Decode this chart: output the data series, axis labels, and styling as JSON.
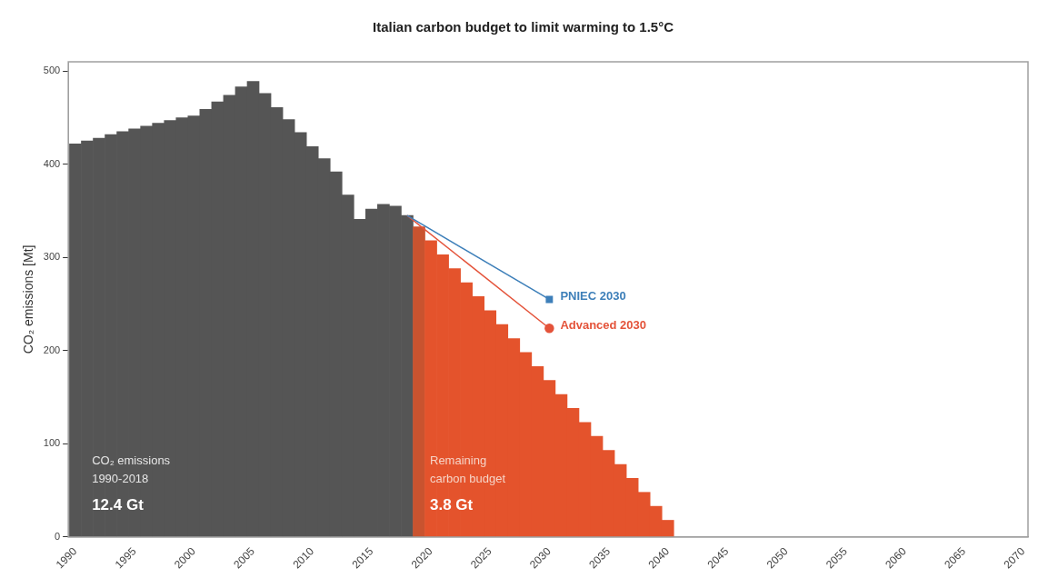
{
  "chart_data": {
    "type": "bar",
    "title": "Italian carbon budget to limit warming to 1.5°C",
    "ylabel": "CO₂ emissions [Mt]",
    "xlim": [
      1989.4,
      2070.4
    ],
    "xticks": [
      1990,
      1995,
      2000,
      2005,
      2010,
      2015,
      2020,
      2025,
      2030,
      2035,
      2040,
      2045,
      2050,
      2055,
      2060,
      2065,
      2070
    ],
    "ylim": [
      0,
      510
    ],
    "yticks": [
      0,
      100,
      200,
      300,
      400,
      500
    ],
    "grid": false,
    "legend": false,
    "series": [
      {
        "x": [
          1990,
          1991,
          1992,
          1993,
          1994,
          1995,
          1996,
          1997,
          1998,
          1999,
          2000,
          2001,
          2002,
          2003,
          2004,
          2005,
          2006,
          2007,
          2008,
          2009,
          2010,
          2011,
          2012,
          2013,
          2014,
          2015,
          2016,
          2017,
          2018,
          2019,
          2020,
          2021,
          2022,
          2023,
          2024,
          2025,
          2026,
          2027,
          2028,
          2029,
          2030,
          2031,
          2032,
          2033,
          2034,
          2035,
          2036,
          2037,
          2038,
          2039,
          2040
        ],
        "values": [
          422,
          425,
          428,
          432,
          435,
          438,
          441,
          444,
          447,
          450,
          452,
          459,
          467,
          474,
          483,
          489,
          476,
          461,
          448,
          434,
          419,
          406,
          392,
          367,
          341,
          352,
          357,
          355,
          345,
          333,
          318,
          303,
          288,
          273,
          258,
          243,
          228,
          213,
          198,
          183,
          168,
          153,
          138,
          123,
          108,
          93,
          78,
          63,
          48,
          33,
          18
        ],
        "colors": [
          "#555555",
          "#555555",
          "#555555",
          "#555555",
          "#555555",
          "#555555",
          "#555555",
          "#555555",
          "#555555",
          "#555555",
          "#555555",
          "#555555",
          "#555555",
          "#555555",
          "#555555",
          "#555555",
          "#555555",
          "#555555",
          "#555555",
          "#555555",
          "#555555",
          "#555555",
          "#555555",
          "#555555",
          "#555555",
          "#555555",
          "#555555",
          "#555555",
          "#555555",
          "#c9532f",
          "#e4532c",
          "#e4532c",
          "#e4532c",
          "#e4532c",
          "#e4532c",
          "#e4532c",
          "#e4532c",
          "#e4532c",
          "#e4532c",
          "#e4532c",
          "#e4532c",
          "#e4532c",
          "#e4532c",
          "#e4532c",
          "#e4532c",
          "#e4532c",
          "#e4532c",
          "#e4532c",
          "#e4532c",
          "#e4532c",
          "#e4532c"
        ]
      },
      {
        "type": "line",
        "name": "PNIEC 2030",
        "color": "#3d7fb9",
        "x": [
          2018,
          2030
        ],
        "values": [
          345,
          255
        ],
        "marker": "square"
      },
      {
        "type": "line",
        "name": "Advanced 2030",
        "color": "#e4533a",
        "x": [
          2018,
          2030
        ],
        "values": [
          345,
          224
        ],
        "marker": "circle"
      }
    ],
    "annotations": [
      "CO₂ emissions",
      "1990-2018",
      "12.4 Gt",
      "Remaining",
      "carbon budget",
      "3.8 Gt"
    ]
  }
}
